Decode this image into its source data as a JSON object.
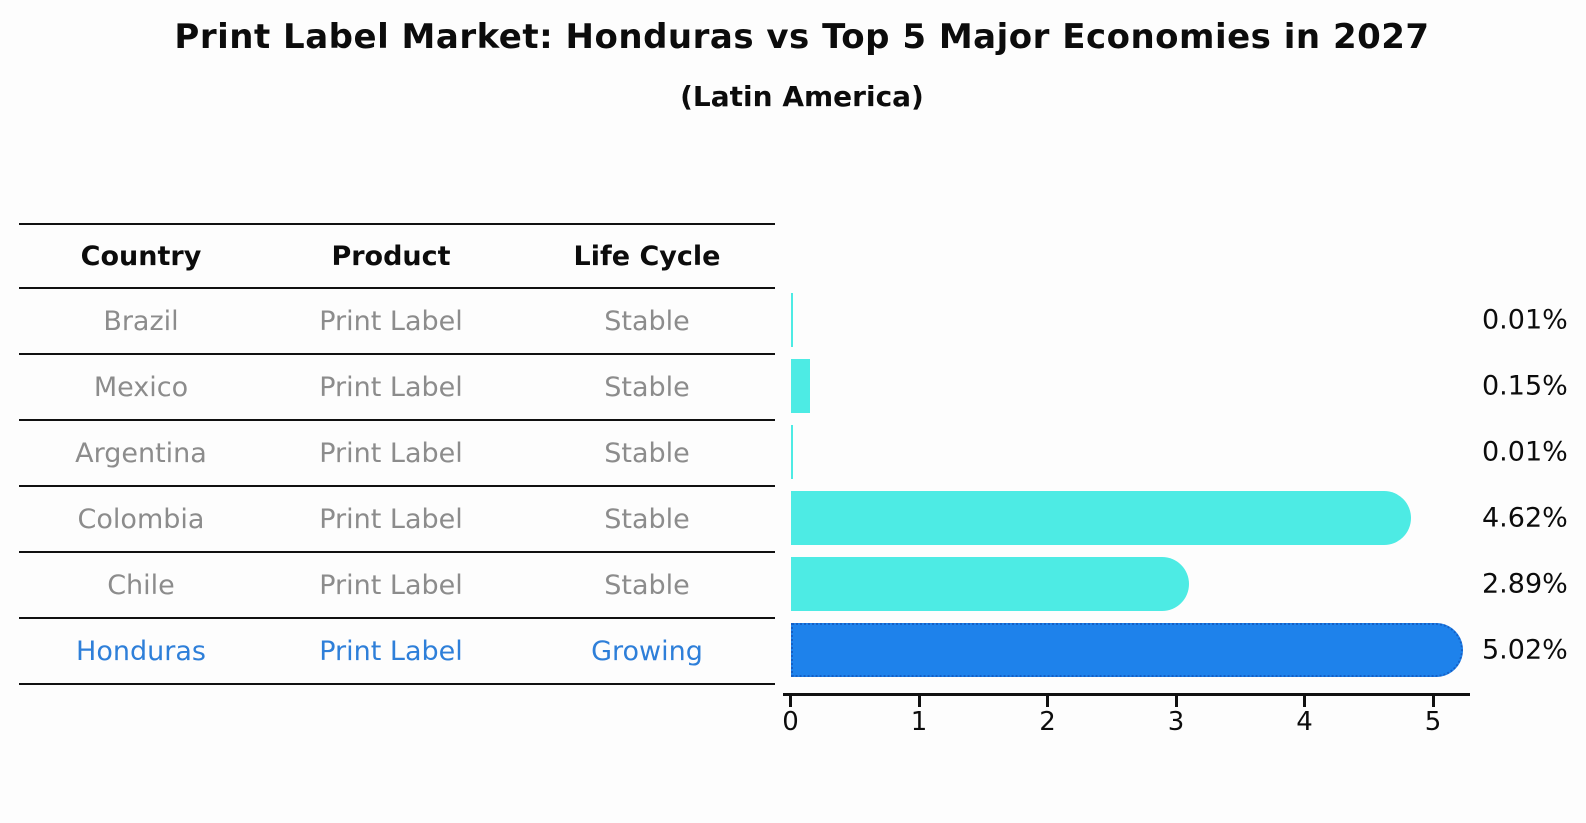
{
  "header": {
    "title": "Print Label Market: Honduras vs Top 5 Major Economies in 2027",
    "subtitle": "(Latin America)"
  },
  "table": {
    "headers": [
      "Country",
      "Product",
      "Life Cycle"
    ],
    "rows": [
      {
        "country": "Brazil",
        "product": "Print Label",
        "life_cycle": "Stable",
        "highlight": false
      },
      {
        "country": "Mexico",
        "product": "Print Label",
        "life_cycle": "Stable",
        "highlight": false
      },
      {
        "country": "Argentina",
        "product": "Print Label",
        "life_cycle": "Stable",
        "highlight": false
      },
      {
        "country": "Colombia",
        "product": "Print Label",
        "life_cycle": "Stable",
        "highlight": false
      },
      {
        "country": "Chile",
        "product": "Print Label",
        "life_cycle": "Stable",
        "highlight": false
      },
      {
        "country": "Honduras",
        "product": "Print Label",
        "life_cycle": "Growing",
        "highlight": true
      }
    ]
  },
  "chart_data": {
    "type": "bar",
    "orientation": "horizontal",
    "title": "Print Label Market: Honduras vs Top 5 Major Economies in 2027",
    "subtitle": "(Latin America)",
    "categories": [
      "Brazil",
      "Mexico",
      "Argentina",
      "Colombia",
      "Chile",
      "Honduras"
    ],
    "values": [
      0.01,
      0.15,
      0.01,
      4.62,
      2.89,
      5.02
    ],
    "value_labels": [
      "0.01%",
      "0.15%",
      "0.01%",
      "4.62%",
      "2.89%",
      "5.02%"
    ],
    "bar_colors": [
      "#4debe4",
      "#4debe4",
      "#4debe4",
      "#4debe4",
      "#4debe4",
      "#1e82eb"
    ],
    "highlight_index": 5,
    "xlabel": "",
    "ylabel": "",
    "xlim": [
      0,
      5.2
    ],
    "x_ticks": [
      "0",
      "1",
      "2",
      "3",
      "4",
      "5"
    ],
    "grid": false,
    "legend": false
  },
  "colors": {
    "bar_default": "#4debe4",
    "bar_highlight": "#1e82eb",
    "highlight_border": "#1560c6",
    "highlight_text": "#2e7fd9",
    "muted_text": "#8c8c8c",
    "text": "#0c0c0c"
  }
}
